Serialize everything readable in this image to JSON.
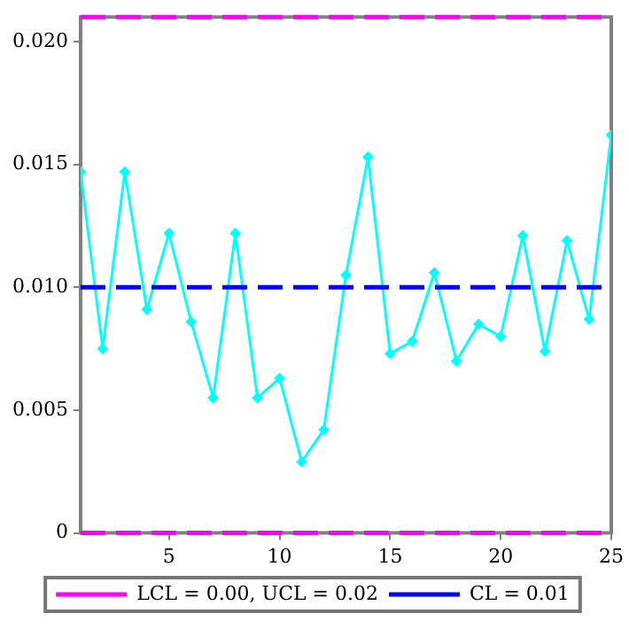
{
  "chart_data": {
    "type": "line",
    "x": [
      1,
      2,
      3,
      4,
      5,
      6,
      7,
      8,
      9,
      10,
      11,
      12,
      13,
      14,
      15,
      16,
      17,
      18,
      19,
      20,
      21,
      22,
      23,
      24,
      25
    ],
    "series": [
      {
        "color": "#00ffff",
        "values": [
          0.0147,
          0.0075,
          0.0147,
          0.0091,
          0.0122,
          0.0086,
          0.0055,
          0.0122,
          0.0055,
          0.0063,
          0.0029,
          0.0042,
          0.0105,
          0.0153,
          0.0073,
          0.0078,
          0.0106,
          0.007,
          0.0085,
          0.008,
          0.0121,
          0.0074,
          0.0119,
          0.0087,
          0.0162
        ]
      }
    ],
    "xlim": [
      1,
      25
    ],
    "xticks": [
      5,
      10,
      15,
      20,
      25
    ],
    "ylim": [
      0,
      0.021
    ],
    "yticks": [
      0,
      {
        "value": 0.005,
        "label": "0.005"
      },
      {
        "value": 0.01,
        "label": "0.010"
      },
      {
        "value": 0.015,
        "label": "0.015"
      },
      {
        "value": 0.02,
        "label": "0.020"
      }
    ],
    "ref_lines": [
      {
        "axis": "y",
        "value": 0,
        "label": "LCL = 0.00, UCL = 0.02",
        "color": "#ff00ff",
        "line_style": "dashed"
      },
      {
        "axis": "y",
        "value": 0.021,
        "color": "#ff00ff",
        "line_style": "dashed"
      },
      {
        "axis": "y",
        "value": 0.01,
        "label": "CL = 0.01",
        "color": "#0000ff",
        "line_style": "dashed"
      }
    ],
    "marker": "diamond",
    "line_style": "solid",
    "grid": false,
    "legend": "bottom"
  }
}
